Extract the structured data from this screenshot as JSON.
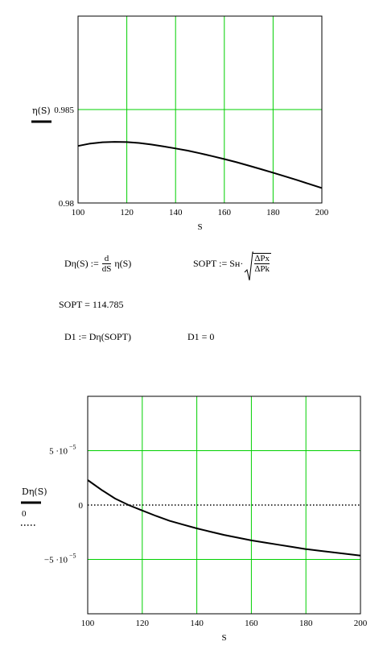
{
  "chart_data": [
    {
      "type": "line",
      "xlabel": "S",
      "ylabel": "η(S)",
      "xlim": [
        100,
        200
      ],
      "ylim": [
        0.98,
        0.99
      ],
      "x_ticks": [
        "100",
        "120",
        "140",
        "160",
        "180",
        "200"
      ],
      "y_ticks": [
        "0.98",
        "0.985"
      ],
      "grid": true,
      "series": [
        {
          "color": "#000000",
          "x": [
            100,
            105,
            110,
            115,
            120,
            125,
            130,
            135,
            140,
            145,
            150,
            155,
            160,
            165,
            170,
            175,
            180,
            185,
            190,
            195,
            200
          ],
          "y": [
            0.98305,
            0.98318,
            0.98325,
            0.98327,
            0.98326,
            0.98321,
            0.98313,
            0.98303,
            0.98292,
            0.9828,
            0.98266,
            0.98251,
            0.98235,
            0.98218,
            0.982,
            0.98181,
            0.98162,
            0.98142,
            0.98122,
            0.98101,
            0.9808
          ]
        }
      ]
    },
    {
      "type": "line",
      "xlabel": "S",
      "ylabel": "Dη(S)",
      "legend": [
        "Dη(S)",
        "0"
      ],
      "xlim": [
        100,
        200
      ],
      "ylim": [
        -0.0001,
        0.0001
      ],
      "x_ticks": [
        "100",
        "120",
        "140",
        "160",
        "180",
        "200"
      ],
      "y_ticks": [
        {
          "value": 5e-05,
          "mantissa": "5 ·10",
          "exponent": "−5"
        },
        {
          "value": 0,
          "mantissa": "0",
          "exponent": ""
        },
        {
          "value": -5e-05,
          "mantissa": "−5 ·10",
          "exponent": "−5"
        }
      ],
      "grid": true,
      "series": [
        {
          "name": "Dη(S)",
          "color": "#000000",
          "style": "solid",
          "x": [
            100,
            105,
            110,
            115,
            120,
            125,
            130,
            135,
            140,
            145,
            150,
            155,
            160,
            165,
            170,
            175,
            180,
            185,
            190,
            195,
            200
          ],
          "y": [
            2.3e-05,
            1.4e-05,
            6e-06,
            0,
            -5e-06,
            -1e-05,
            -1.45e-05,
            -1.8e-05,
            -2.15e-05,
            -2.45e-05,
            -2.75e-05,
            -3e-05,
            -3.25e-05,
            -3.45e-05,
            -3.65e-05,
            -3.85e-05,
            -4.05e-05,
            -4.2e-05,
            -4.35e-05,
            -4.5e-05,
            -4.65e-05
          ]
        },
        {
          "name": "0",
          "color": "#000000",
          "style": "dotted",
          "x": [
            100,
            200
          ],
          "y": [
            0,
            0
          ]
        }
      ]
    }
  ],
  "formulas": {
    "f1_lhs": "Dη(S) :=",
    "f1_d": "d",
    "f1_ds": "dS",
    "f1_rhs": "η(S)",
    "f2_lhs": "SOPT := Sн·",
    "f2_num": "ΔPx",
    "f2_den": "ΔPk",
    "result_sopt": "SOPT = 114.785",
    "f3_lhs": "D1 := Dη(SOPT)",
    "f3_result": "D1 = 0"
  }
}
